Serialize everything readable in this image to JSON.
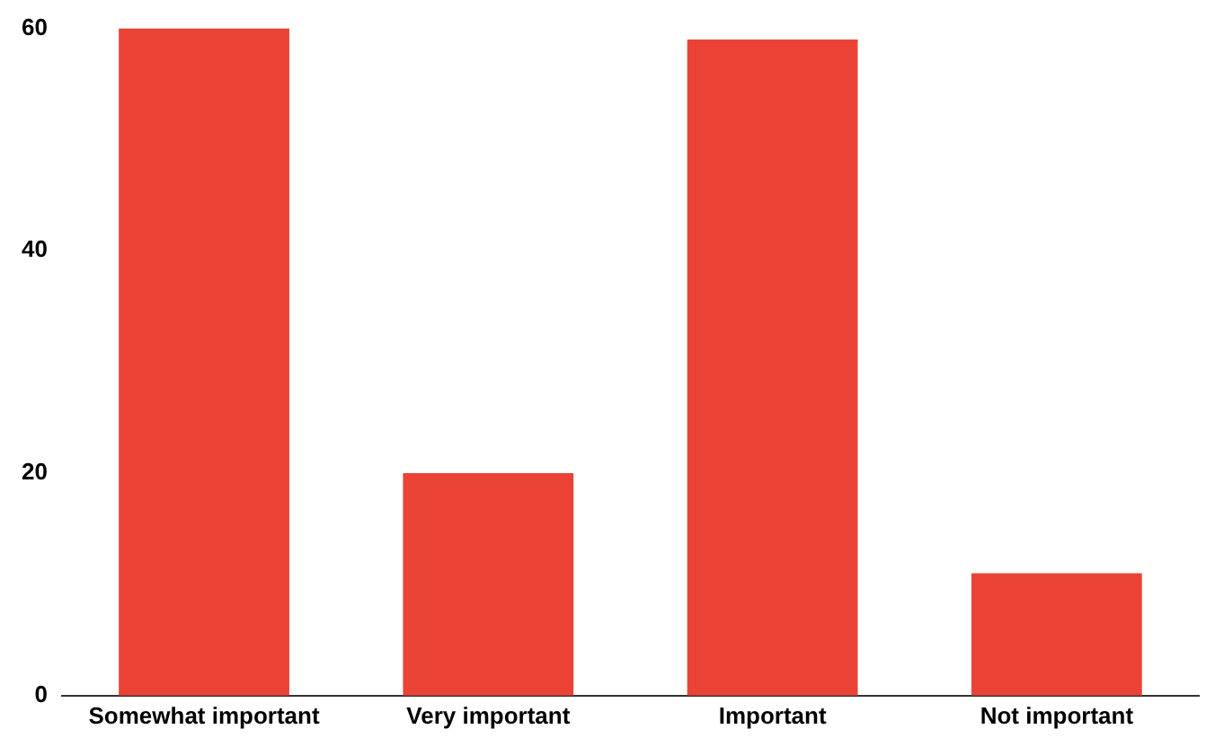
{
  "chart_data": {
    "type": "bar",
    "categories": [
      "Somewhat important",
      "Very important",
      "Important",
      "Not important"
    ],
    "values": [
      60,
      20,
      59,
      11
    ],
    "color": "#ea4335",
    "ylim": [
      0,
      60
    ],
    "yticks": [
      0,
      20,
      40,
      60
    ],
    "grid": false,
    "legend": false
  }
}
